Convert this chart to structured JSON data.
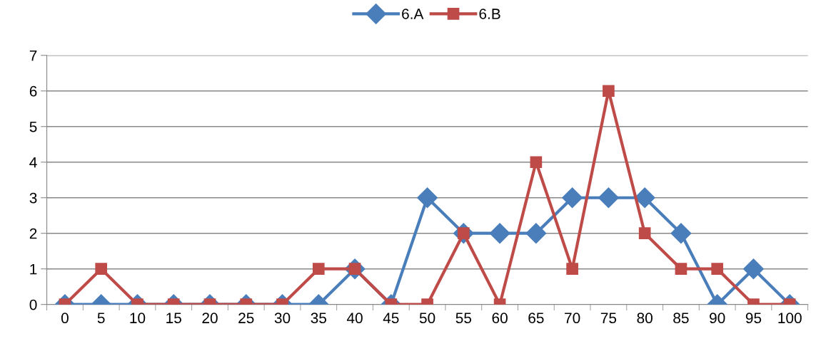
{
  "chart_data": {
    "type": "line",
    "categories": [
      "0",
      "5",
      "10",
      "15",
      "20",
      "25",
      "30",
      "35",
      "40",
      "45",
      "50",
      "55",
      "60",
      "65",
      "70",
      "75",
      "80",
      "85",
      "90",
      "95",
      "100"
    ],
    "series": [
      {
        "name": "6.A",
        "color": "#4a7ebb",
        "marker": "diamond",
        "values": [
          0,
          0,
          0,
          0,
          0,
          0,
          0,
          0,
          1,
          0,
          3,
          2,
          2,
          2,
          3,
          3,
          3,
          2,
          0,
          1,
          0
        ]
      },
      {
        "name": "6.B",
        "color": "#be4b48",
        "marker": "square",
        "values": [
          0,
          1,
          0,
          0,
          0,
          0,
          0,
          1,
          1,
          0,
          0,
          2,
          0,
          4,
          1,
          6,
          2,
          1,
          1,
          0,
          0
        ]
      }
    ],
    "ylim": [
      0,
      7
    ],
    "yticks": [
      0,
      1,
      2,
      3,
      4,
      5,
      6,
      7
    ],
    "grid": "y",
    "legend": "top",
    "line_style": "solid"
  }
}
